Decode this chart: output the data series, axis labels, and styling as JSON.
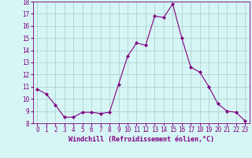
{
  "x": [
    0,
    1,
    2,
    3,
    4,
    5,
    6,
    7,
    8,
    9,
    10,
    11,
    12,
    13,
    14,
    15,
    16,
    17,
    18,
    19,
    20,
    21,
    22,
    23
  ],
  "y": [
    10.8,
    10.4,
    9.5,
    8.5,
    8.5,
    8.9,
    8.9,
    8.8,
    8.9,
    11.2,
    13.5,
    14.6,
    14.4,
    16.8,
    16.7,
    17.8,
    15.0,
    12.6,
    12.2,
    11.0,
    9.6,
    9.0,
    8.9,
    8.2
  ],
  "line_color": "#800080",
  "marker": "D",
  "marker_size": 2,
  "bg_color": "#d6f5f5",
  "grid_color": "#aacccc",
  "xlabel": "Windchill (Refroidissement éolien,°C)",
  "xlabel_color": "#800080",
  "tick_color": "#800080",
  "ylim": [
    8,
    18
  ],
  "xlim": [
    0,
    23
  ],
  "yticks": [
    8,
    9,
    10,
    11,
    12,
    13,
    14,
    15,
    16,
    17,
    18
  ],
  "xticks": [
    0,
    1,
    2,
    3,
    4,
    5,
    6,
    7,
    8,
    9,
    10,
    11,
    12,
    13,
    14,
    15,
    16,
    17,
    18,
    19,
    20,
    21,
    22,
    23
  ],
  "tick_fontsize": 5.5,
  "xlabel_fontsize": 6.0
}
